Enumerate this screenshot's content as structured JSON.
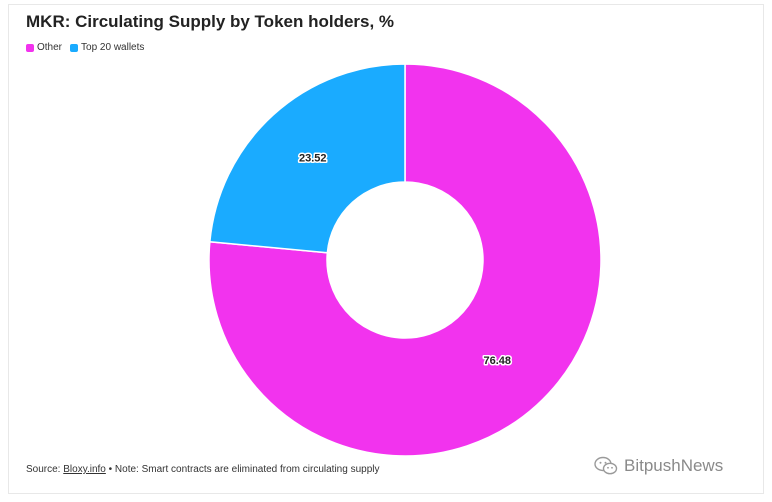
{
  "chart_data": {
    "type": "pie",
    "title": "MKR: Circulating Supply by Token holders, %",
    "categories": [
      "Other",
      "Top 20 wallets"
    ],
    "values": [
      76.48,
      23.52
    ],
    "data_labels": [
      "76.48",
      "23.52"
    ],
    "donut": true,
    "legend_position": "top-left",
    "colors": [
      "#f233ee",
      "#1aabff"
    ]
  },
  "source": {
    "prefix": "Source: ",
    "link": "Bloxy.info",
    "note": " • Note: Smart contracts are eliminated from circulating supply"
  },
  "watermark": {
    "text": "BitpushNews",
    "icon": "wechat-icon"
  }
}
